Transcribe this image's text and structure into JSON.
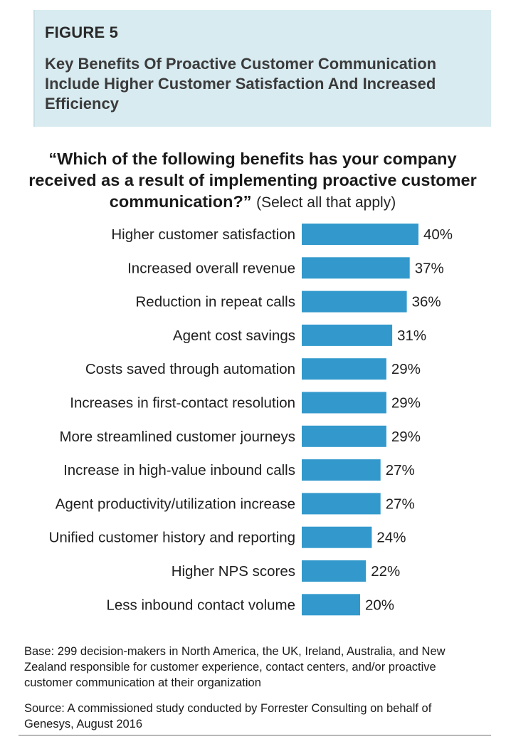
{
  "header": {
    "figure_label": "FIGURE 5",
    "title": "Key Benefits Of Proactive Customer Communication Include Higher Customer Satisfaction And Increased Efficiency"
  },
  "question": {
    "text": "“Which of the following benefits has your company received as a result of implementing proactive customer communication?”",
    "note": "(Select all that apply)"
  },
  "chart_data": {
    "type": "bar",
    "orientation": "horizontal",
    "categories": [
      "Higher customer satisfaction",
      "Increased overall revenue",
      "Reduction in repeat calls",
      "Agent cost savings",
      "Costs saved through automation",
      "Increases in first-contact resolution",
      "More streamlined customer journeys",
      "Increase in high-value inbound calls",
      "Agent productivity/utilization increase",
      "Unified customer history and reporting",
      "Higher NPS scores",
      "Less inbound contact volume"
    ],
    "values": [
      40,
      37,
      36,
      31,
      29,
      29,
      29,
      27,
      27,
      24,
      22,
      20
    ],
    "value_labels": [
      "40%",
      "37%",
      "36%",
      "31%",
      "29%",
      "29%",
      "29%",
      "27%",
      "27%",
      "24%",
      "22%",
      "20%"
    ],
    "bar_color": "#3399cc",
    "xlim": [
      0,
      100
    ],
    "grid": false,
    "legend": "none"
  },
  "notes": {
    "base": "Base: 299 decision-makers in North America, the UK, Ireland, Australia, and New Zealand responsible for customer experience, contact centers, and/or proactive customer communication at their organization",
    "source": "Source: A commissioned study conducted by Forrester Consulting on behalf of Genesys, August 2016"
  },
  "colors": {
    "header_background": "#d8ebf0",
    "bar": "#3399cc"
  }
}
